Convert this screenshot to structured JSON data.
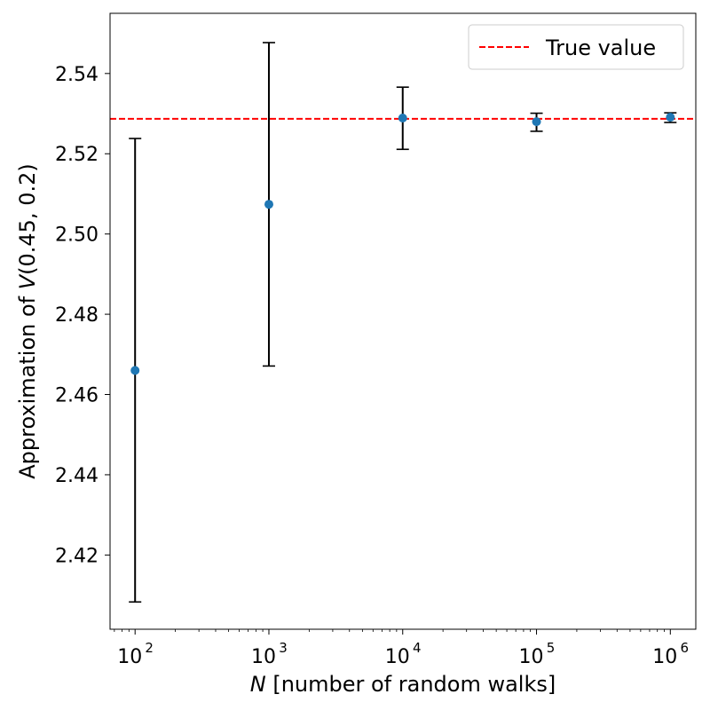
{
  "chart_data": {
    "type": "scatter",
    "title": "",
    "xlabel": {
      "italic": "N",
      "rest": " [number of random walks]"
    },
    "ylabel": {
      "prefix": "Approximation of ",
      "italic": "V",
      "suffix": "(0.45, 0.2)"
    },
    "xscale": "log",
    "xlim": [
      65,
      1550000
    ],
    "ylim": [
      2.4015,
      2.555
    ],
    "yticks": [
      "2.42",
      "2.44",
      "2.46",
      "2.48",
      "2.50",
      "2.52",
      "2.54"
    ],
    "xticks": [
      {
        "value": 100,
        "base": "10",
        "exp": "2"
      },
      {
        "value": 1000,
        "base": "10",
        "exp": "3"
      },
      {
        "value": 10000,
        "base": "10",
        "exp": "4"
      },
      {
        "value": 100000,
        "base": "10",
        "exp": "5"
      },
      {
        "value": 1000000,
        "base": "10",
        "exp": "6"
      }
    ],
    "series": [
      {
        "points": [
          {
            "x": 100,
            "y": 2.466,
            "ylow": 2.4083,
            "yhigh": 2.5238
          },
          {
            "x": 1000,
            "y": 2.5074,
            "ylow": 2.4671,
            "yhigh": 2.5477
          },
          {
            "x": 10000,
            "y": 2.5289,
            "ylow": 2.5211,
            "yhigh": 2.5366
          },
          {
            "x": 100000,
            "y": 2.528,
            "ylow": 2.5256,
            "yhigh": 2.5301
          },
          {
            "x": 1000000,
            "y": 2.5291,
            "ylow": 2.5278,
            "yhigh": 2.5302
          }
        ],
        "color": "#1f77b4",
        "errorbar_color": "#000000"
      }
    ],
    "reference_line": {
      "name": "True value",
      "y": 2.5287,
      "color": "#ff0000",
      "style": "dashed"
    },
    "legend": {
      "placement": "top-right"
    },
    "grid": false
  }
}
